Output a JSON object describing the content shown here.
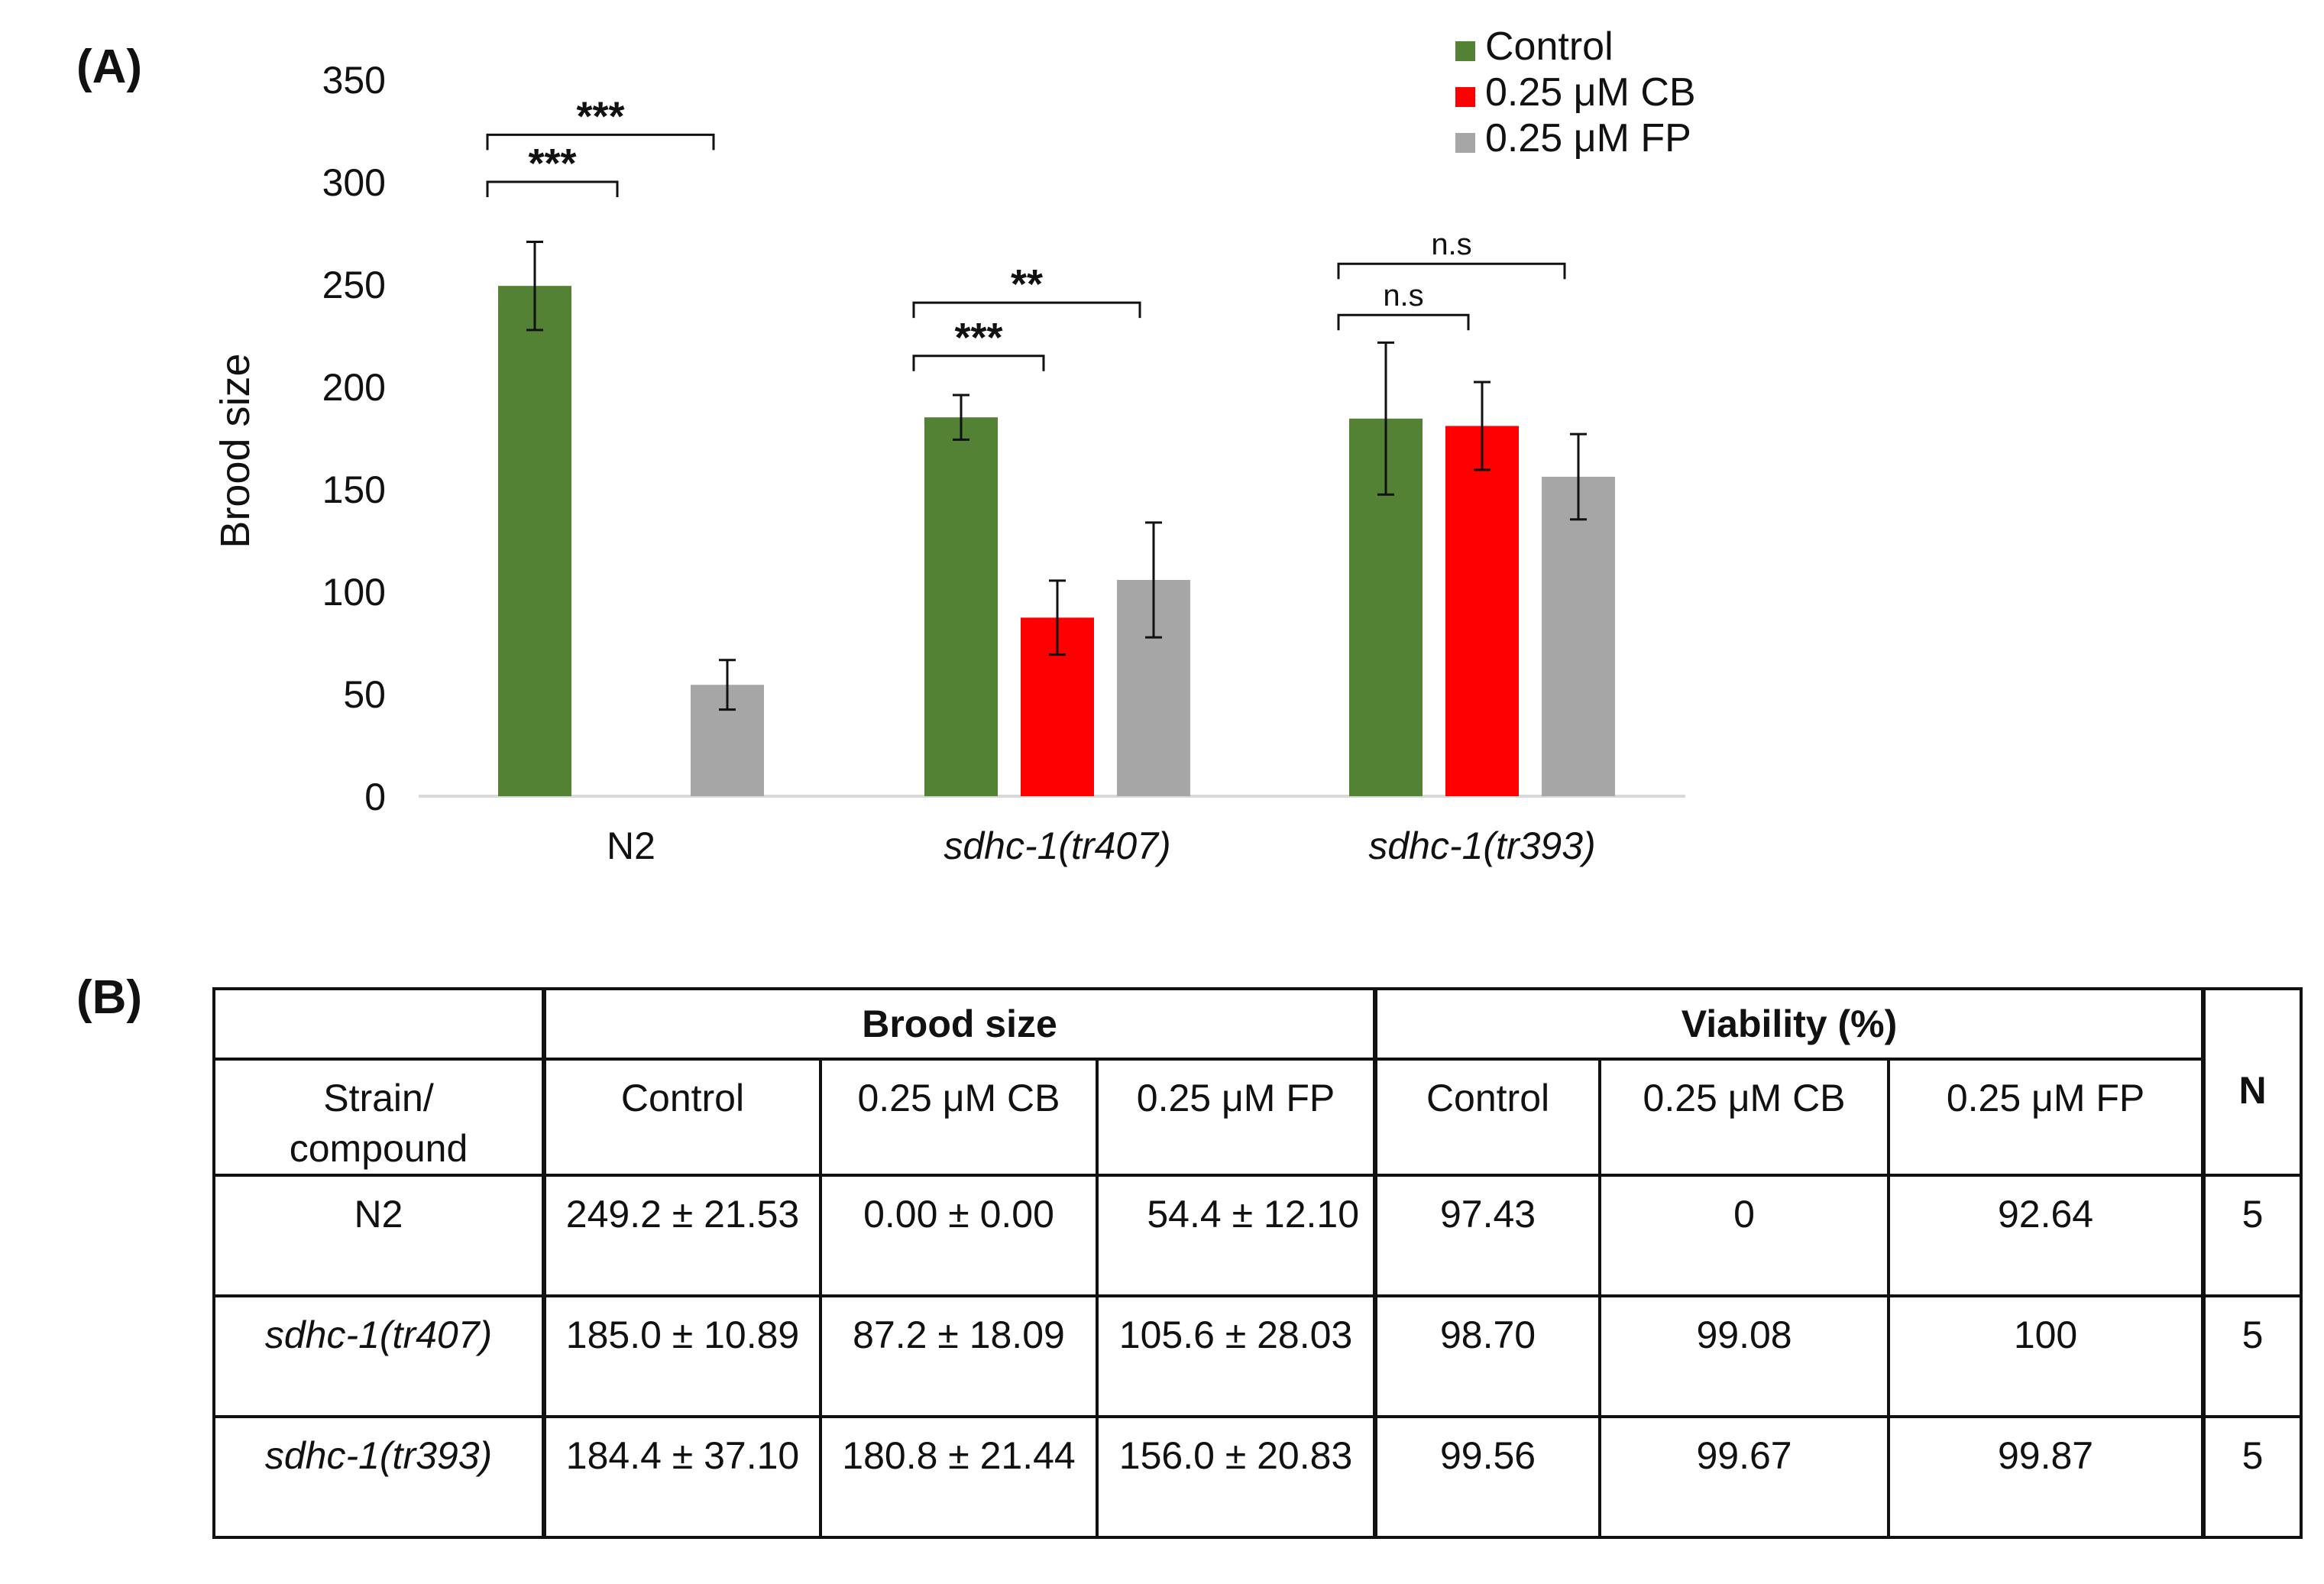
{
  "panel_labels": {
    "a": "(A)",
    "b": "(B)"
  },
  "colors": {
    "control": "#548235",
    "cb": "#ff0000",
    "fp": "#a6a6a6",
    "axis": "#d9d9d9",
    "text": "#111111"
  },
  "chart_data": {
    "type": "bar",
    "title": "",
    "xlabel": "",
    "ylabel": "Brood size",
    "ylim": [
      0,
      350
    ],
    "yticks": [
      0,
      50,
      100,
      150,
      200,
      250,
      300,
      350
    ],
    "categories": [
      "N2",
      "sdhc-1(tr407)",
      "sdhc-1(tr393)"
    ],
    "category_italic": [
      false,
      true,
      true
    ],
    "series": [
      {
        "name": "Control",
        "color": "#548235",
        "values": [
          249.2,
          185.0,
          184.4
        ],
        "errors": [
          21.53,
          10.89,
          37.1
        ]
      },
      {
        "name": "0.25 μM CB",
        "color": "#ff0000",
        "values": [
          0.0,
          87.2,
          180.8
        ],
        "errors": [
          0.0,
          18.09,
          21.44
        ]
      },
      {
        "name": "0.25 μM FP",
        "color": "#a6a6a6",
        "values": [
          54.4,
          105.6,
          156.0
        ],
        "errors": [
          12.1,
          28.03,
          20.83
        ]
      }
    ],
    "legend_position": "top-right",
    "significance": [
      {
        "category": 0,
        "from_series": 0,
        "to_series": 1,
        "label": "***",
        "level": 300
      },
      {
        "category": 0,
        "from_series": 0,
        "to_series": 2,
        "label": "***",
        "level": 323
      },
      {
        "category": 1,
        "from_series": 0,
        "to_series": 1,
        "label": "***",
        "level": 215
      },
      {
        "category": 1,
        "from_series": 0,
        "to_series": 2,
        "label": "**",
        "level": 241
      },
      {
        "category": 2,
        "from_series": 0,
        "to_series": 1,
        "label": "n.s",
        "level": 235
      },
      {
        "category": 2,
        "from_series": 0,
        "to_series": 2,
        "label": "n.s",
        "level": 260
      }
    ]
  },
  "table": {
    "group_headers": {
      "brood": "Brood size",
      "viability": "Viability (%)",
      "n": "N"
    },
    "col_headers": {
      "strain": "Strain/\ncompound",
      "brood_control": "Control",
      "brood_cb": "0.25 μM CB",
      "brood_fp": "0.25 μM FP",
      "via_control": "Control",
      "via_cb": "0.25 μM CB",
      "via_fp": "0.25 μM FP"
    },
    "rows": [
      {
        "strain": "N2",
        "brood_control": "249.2 ± 21.53",
        "brood_cb": "0.00 ± 0.00",
        "brood_fp": "54.4 ± 12.10",
        "via_control": "97.43",
        "via_cb": "0",
        "via_fp": "92.64",
        "n": "5"
      },
      {
        "strain": "sdhc-1(tr407)",
        "brood_control": "185.0 ± 10.89",
        "brood_cb": "87.2 ± 18.09",
        "brood_fp": "105.6 ± 28.03",
        "via_control": "98.70",
        "via_cb": "99.08",
        "via_fp": "100",
        "n": "5"
      },
      {
        "strain": "sdhc-1(tr393)",
        "brood_control": "184.4 ± 37.10",
        "brood_cb": "180.8 ± 21.44",
        "brood_fp": "156.0 ± 20.83",
        "via_control": "99.56",
        "via_cb": "99.67",
        "via_fp": "99.87",
        "n": "5"
      }
    ]
  }
}
